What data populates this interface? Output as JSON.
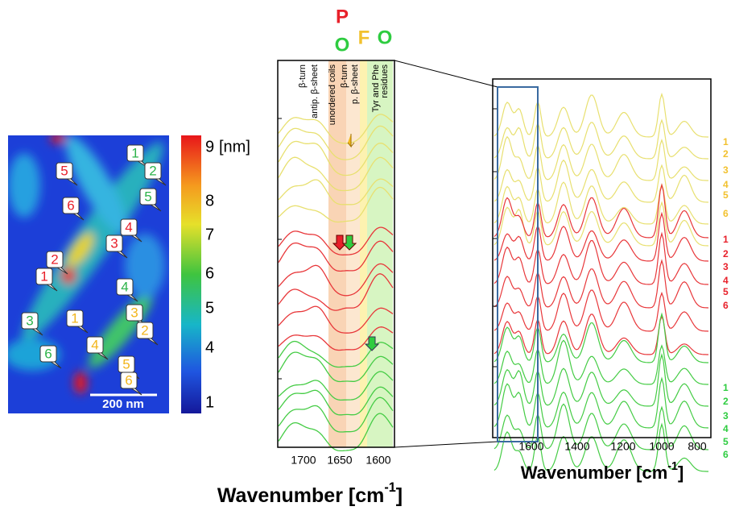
{
  "afm": {
    "colorbar": {
      "unit": "[nm]",
      "labels": [
        "9",
        "8",
        "7",
        "6",
        "5",
        "4",
        "1"
      ]
    },
    "scale_bar": "200 nm",
    "markers": [
      {
        "label": "5",
        "color": "#e8202a"
      },
      {
        "label": "6",
        "color": "#e8202a"
      },
      {
        "label": "4",
        "color": "#e8202a"
      },
      {
        "label": "3",
        "color": "#e8202a"
      },
      {
        "label": "2",
        "color": "#e8202a"
      },
      {
        "label": "1",
        "color": "#e8202a"
      },
      {
        "label": "1",
        "color": "#2db34a"
      },
      {
        "label": "2",
        "color": "#2db34a"
      },
      {
        "label": "5",
        "color": "#2db34a"
      },
      {
        "label": "4",
        "color": "#2db34a"
      },
      {
        "label": "3",
        "color": "#2db34a"
      },
      {
        "label": "6",
        "color": "#2db34a"
      },
      {
        "label": "1",
        "color": "#f2b51c"
      },
      {
        "label": "3",
        "color": "#f2b51c"
      },
      {
        "label": "2",
        "color": "#f2b51c"
      },
      {
        "label": "4",
        "color": "#f2b51c"
      },
      {
        "label": "5",
        "color": "#f2b51c"
      },
      {
        "label": "6",
        "color": "#f2b51c"
      }
    ]
  },
  "middle": {
    "group_labels": [
      {
        "text": "P",
        "color": "#e8202a"
      },
      {
        "text": "O",
        "color": "#2ecc40"
      },
      {
        "text": "F",
        "color": "#f2c12e"
      },
      {
        "text": "O",
        "color": "#2ecc40"
      }
    ],
    "band_labels": [
      "β-turn",
      "antip. β-sheet",
      "unordered coils",
      "β-turn",
      "p. β-sheet",
      "Tyr and Phe",
      "residues"
    ],
    "xticks": [
      "1700",
      "1650",
      "1600"
    ],
    "xlabel": {
      "text": "Wavenumber [cm",
      "sup": "-1",
      "tail": "]"
    }
  },
  "right": {
    "xticks": [
      "1600",
      "1400",
      "1200",
      "1000",
      "800"
    ],
    "xlabel": {
      "text": "Wavenumber [cm",
      "sup": "-1",
      "tail": "]"
    },
    "trace_labels": [
      {
        "label": "1",
        "color": "#f2c12e"
      },
      {
        "label": "2",
        "color": "#f2c12e"
      },
      {
        "label": "3",
        "color": "#f2c12e"
      },
      {
        "label": "4",
        "color": "#f2c12e"
      },
      {
        "label": "5",
        "color": "#f2c12e"
      },
      {
        "label": "6",
        "color": "#f2c12e"
      },
      {
        "label": "1",
        "color": "#e8202a"
      },
      {
        "label": "2",
        "color": "#e8202a"
      },
      {
        "label": "3",
        "color": "#e8202a"
      },
      {
        "label": "4",
        "color": "#e8202a"
      },
      {
        "label": "5",
        "color": "#e8202a"
      },
      {
        "label": "6",
        "color": "#e8202a"
      },
      {
        "label": "1",
        "color": "#2ecc40"
      },
      {
        "label": "2",
        "color": "#2ecc40"
      },
      {
        "label": "3",
        "color": "#2ecc40"
      },
      {
        "label": "4",
        "color": "#2ecc40"
      },
      {
        "label": "5",
        "color": "#2ecc40"
      },
      {
        "label": "6",
        "color": "#2ecc40"
      }
    ]
  }
}
